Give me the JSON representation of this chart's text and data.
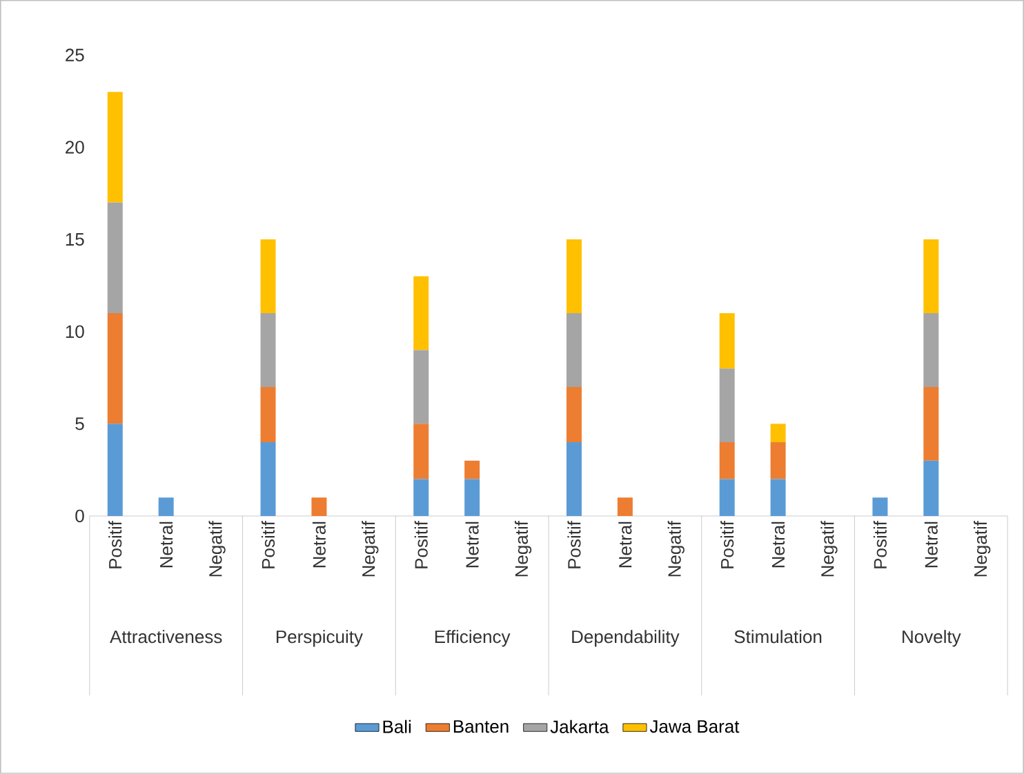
{
  "chart_data": {
    "type": "bar",
    "stacked": true,
    "categories": [
      "Positif",
      "Netral",
      "Negatif",
      "Positif",
      "Netral",
      "Negatif",
      "Positif",
      "Netral",
      "Negatif",
      "Positif",
      "Netral",
      "Negatif",
      "Positif",
      "Netral",
      "Negatif",
      "Positif",
      "Netral",
      "Negatif"
    ],
    "annotations": [
      "Attractiveness",
      "Perspicuity",
      "Efficiency",
      "Dependability",
      "Stimulation",
      "Novelty"
    ],
    "series": [
      {
        "name": "Bali",
        "color": "#5b9bd5",
        "values": [
          5,
          1,
          0,
          4,
          0,
          0,
          2,
          2,
          0,
          4,
          0,
          0,
          2,
          2,
          0,
          1,
          3,
          0
        ]
      },
      {
        "name": "Banten",
        "color": "#ed7d31",
        "values": [
          6,
          0,
          0,
          3,
          1,
          0,
          3,
          1,
          0,
          3,
          1,
          0,
          2,
          2,
          0,
          0,
          4,
          0
        ]
      },
      {
        "name": "Jakarta",
        "color": "#a5a5a5",
        "values": [
          6,
          0,
          0,
          4,
          0,
          0,
          4,
          0,
          0,
          4,
          0,
          0,
          4,
          0,
          0,
          0,
          4,
          0
        ]
      },
      {
        "name": "Jawa Barat",
        "color": "#ffc000",
        "values": [
          6,
          0,
          0,
          4,
          0,
          0,
          4,
          0,
          0,
          4,
          0,
          0,
          3,
          1,
          0,
          0,
          4,
          0
        ]
      }
    ],
    "ylim": [
      0,
      25
    ],
    "yticks": [
      0,
      5,
      10,
      15,
      20,
      25
    ],
    "legend": "bottom"
  }
}
